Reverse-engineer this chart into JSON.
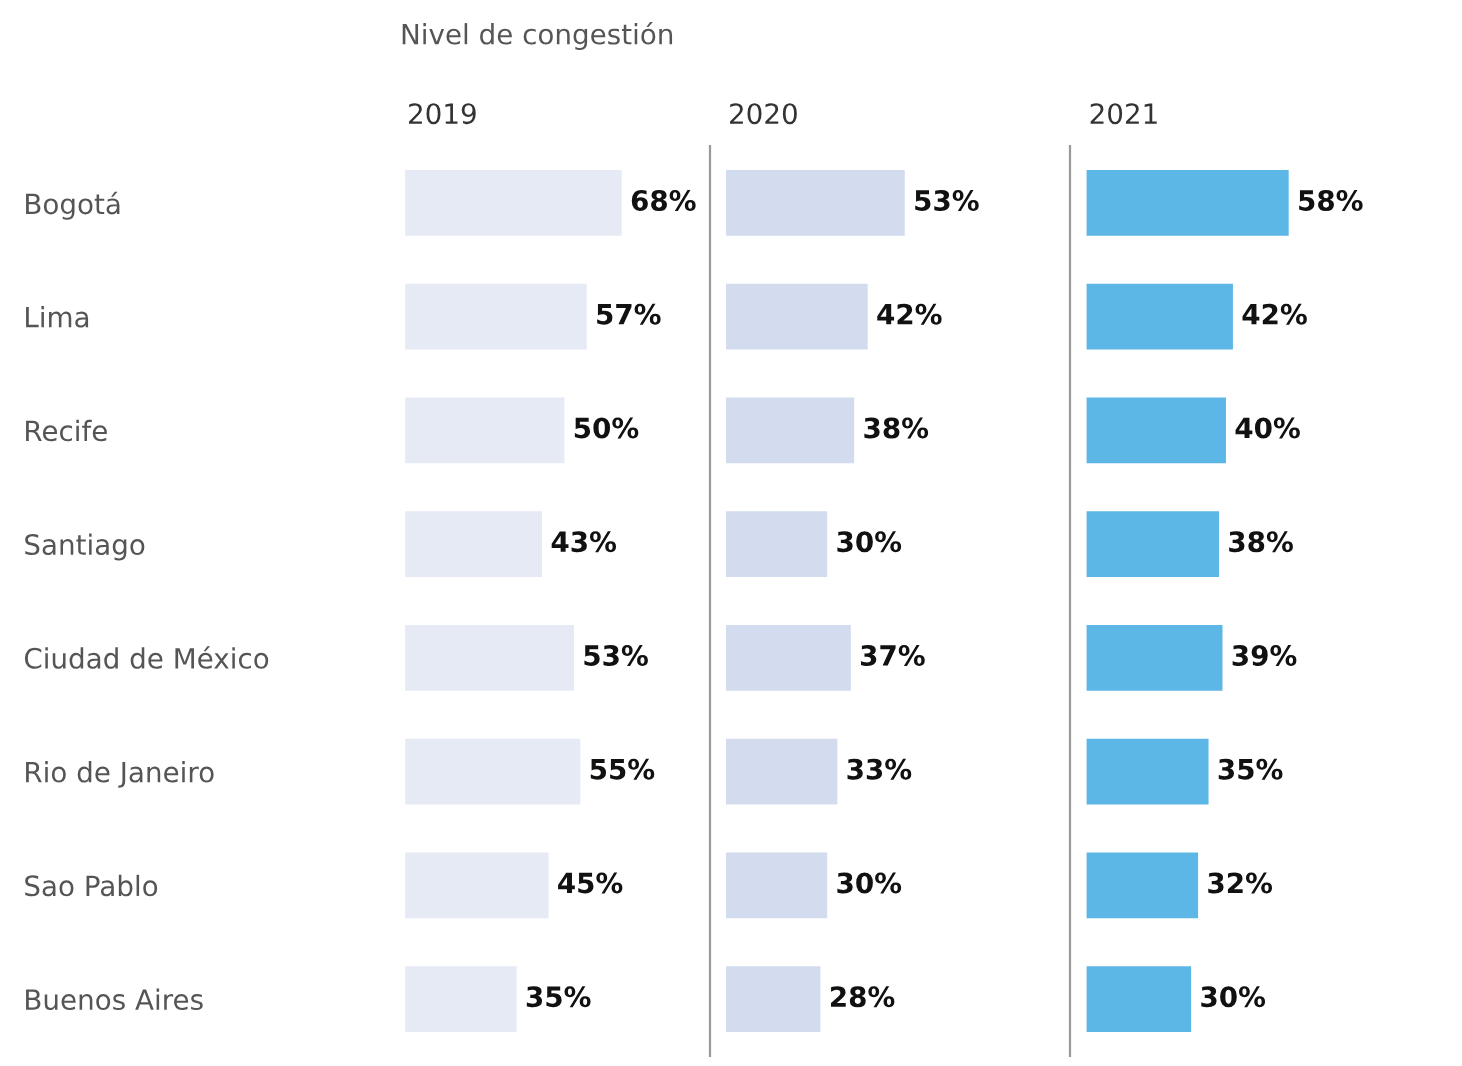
{
  "chart_data": [
    {
      "type": "bar",
      "orientation": "horizontal",
      "title": "2019",
      "annotations": [
        "Nivel de congestión"
      ],
      "tick_labels": "y",
      "legend": false,
      "categories": [
        "Bogotá",
        "Lima",
        "Recife",
        "Santiago",
        "Ciudad de México",
        "Rio de Janeiro",
        "Sao Pablo",
        "Buenos Aires"
      ],
      "series": [
        {
          "color": "#e6eaf5",
          "values": [
            68,
            57,
            50,
            43,
            53,
            55,
            45,
            35
          ],
          "value_labels": [
            "68%",
            "57%",
            "50%",
            "43%",
            "53%",
            "55%",
            "45%",
            "35%"
          ]
        }
      ]
    },
    {
      "type": "bar",
      "orientation": "horizontal",
      "title": "2020",
      "tick_labels": false,
      "legend": false,
      "series": [
        {
          "color": "#d2dcee",
          "values": [
            53,
            42,
            38,
            30,
            37,
            33,
            30,
            28
          ],
          "value_labels": [
            "53%",
            "42%",
            "38%",
            "30%",
            "37%",
            "33%",
            "30%",
            "28%"
          ]
        }
      ]
    },
    {
      "type": "bar",
      "orientation": "horizontal",
      "title": "2021",
      "tick_labels": false,
      "legend": false,
      "series": [
        {
          "color": "#5cb6e6",
          "values": [
            58,
            42,
            40,
            38,
            39,
            35,
            32,
            30
          ],
          "value_labels": [
            "58%",
            "42%",
            "40%",
            "38%",
            "39%",
            "35%",
            "32%",
            "30%"
          ]
        }
      ]
    }
  ]
}
